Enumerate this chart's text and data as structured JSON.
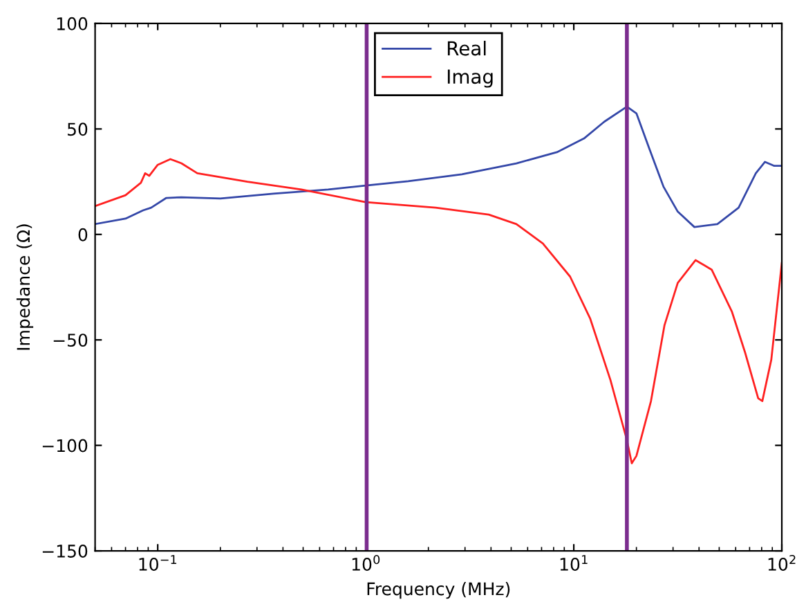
{
  "chart_data": {
    "type": "line",
    "xlabel": "Frequency (MHz)",
    "ylabel": "Impedance (Ω)",
    "log": "x",
    "xlim": [
      0.05,
      100
    ],
    "ylim": [
      -150,
      100
    ],
    "xticks": [
      {
        "value": 0.1,
        "label": "10$^{−1}$"
      },
      {
        "value": 1,
        "label": "10$^{0}$"
      },
      {
        "value": 10,
        "label": "10$^{1}$"
      },
      {
        "value": 100,
        "label": "10$^{2}$"
      }
    ],
    "yticks": [
      {
        "value": -150,
        "label": "−150"
      },
      {
        "value": -100,
        "label": "−100"
      },
      {
        "value": -50,
        "label": "−50"
      },
      0,
      50,
      100
    ],
    "grid": false,
    "legend": "top",
    "marker": "none",
    "line_style": "solid",
    "series": [
      {
        "name": "Real",
        "color": "#3447a8",
        "x": [
          0.05,
          0.07,
          0.085,
          0.093,
          0.11,
          0.13,
          0.2,
          0.36,
          0.66,
          1,
          1.6,
          2.9,
          5.3,
          8.3,
          11.2,
          14,
          18,
          20,
          23,
          27,
          31.6,
          38,
          49,
          62,
          75,
          83,
          92,
          100
        ],
        "values": [
          4.9,
          7.5,
          11.4,
          12.7,
          17.3,
          17.6,
          17,
          19.3,
          21.3,
          23.2,
          25.2,
          28.5,
          33.7,
          39,
          45.5,
          53.4,
          60.6,
          57.4,
          41,
          22.6,
          10.8,
          3.5,
          4.9,
          12.7,
          29,
          34.4,
          32.5,
          32.5
        ]
      },
      {
        "name": "Imag",
        "color": "#ff2020",
        "x": [
          0.05,
          0.07,
          0.083,
          0.087,
          0.091,
          0.1,
          0.115,
          0.13,
          0.155,
          0.27,
          0.49,
          1,
          2.17,
          3.9,
          5.3,
          7.1,
          9.6,
          12,
          15,
          18,
          19,
          20,
          23.5,
          27.3,
          31.6,
          38.5,
          46,
          57.5,
          66.6,
          77,
          80.6,
          89,
          100
        ],
        "values": [
          13.4,
          18.6,
          24.5,
          29,
          27.8,
          33,
          35.7,
          33.7,
          29,
          25,
          21.3,
          15.3,
          12.7,
          9.4,
          4.9,
          -4.3,
          -20,
          -40,
          -69,
          -97.5,
          -108.5,
          -105,
          -79,
          -43,
          -23,
          -12.2,
          -16.7,
          -36.5,
          -56,
          -77.7,
          -79,
          -59.4,
          -13.5
        ]
      }
    ],
    "ref_lines": [
      {
        "axis": "x",
        "value": 1.01,
        "color": "#7b2d8e"
      },
      {
        "axis": "x",
        "value": 18,
        "color": "#7b2d8e"
      }
    ]
  }
}
